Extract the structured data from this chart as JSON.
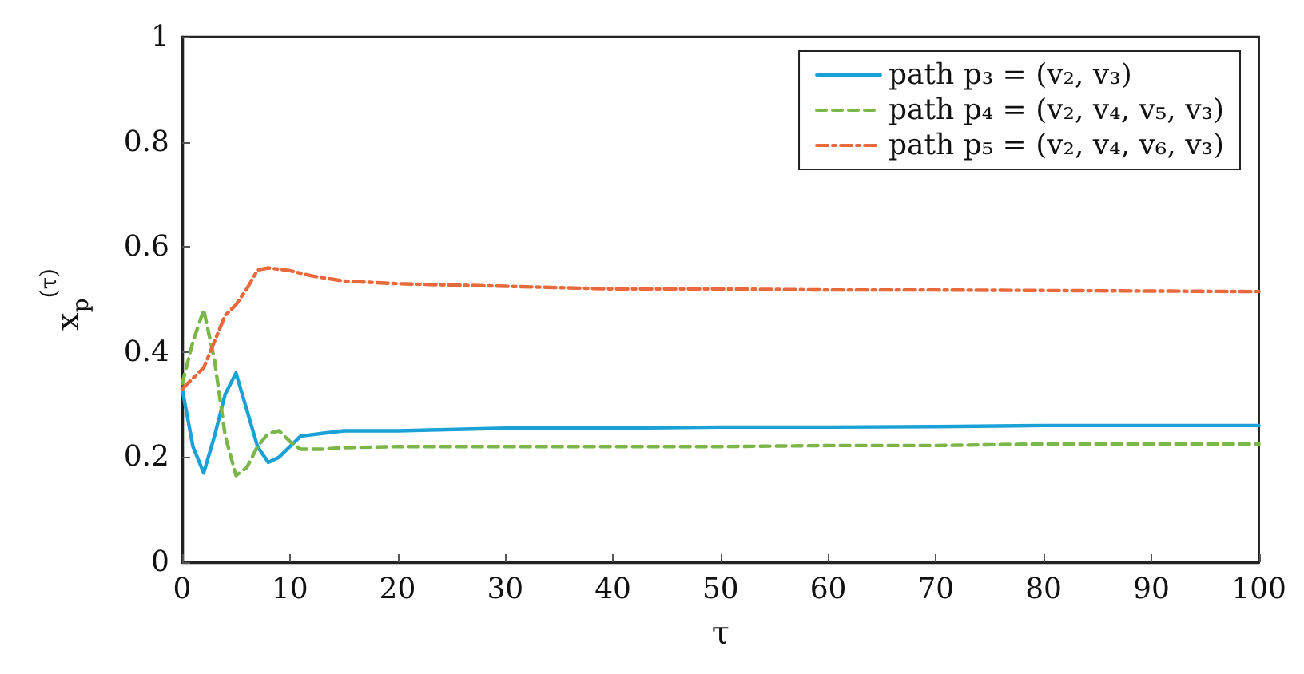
{
  "chart_data": {
    "type": "line",
    "xlabel": "τ",
    "ylabel": "x$_{p}$$^{(τ)}$",
    "xlim": [
      0,
      100
    ],
    "ylim": [
      0,
      1
    ],
    "xticks": [
      0,
      10,
      20,
      30,
      40,
      50,
      60,
      70,
      80,
      90,
      100
    ],
    "yticks": [
      0,
      0.2,
      0.4,
      0.6,
      0.8,
      1
    ],
    "grid": false,
    "legend": "top right",
    "marker": "none",
    "series": [
      {
        "name": "path p₃ = (v₂, v₃)",
        "color": "#1ba1d6",
        "line_style": "solid",
        "x": [
          0,
          1,
          2,
          3,
          4,
          5,
          6,
          7,
          8,
          9,
          10,
          11,
          13,
          15,
          20,
          30,
          40,
          50,
          60,
          70,
          80,
          90,
          100
        ],
        "values": [
          0.33,
          0.22,
          0.17,
          0.24,
          0.32,
          0.36,
          0.29,
          0.22,
          0.19,
          0.2,
          0.22,
          0.24,
          0.245,
          0.25,
          0.25,
          0.255,
          0.255,
          0.257,
          0.257,
          0.258,
          0.26,
          0.26,
          0.26
        ]
      },
      {
        "name": "path p₄ = (v₂, v₄, v₅, v₃)",
        "color": "#7ab648",
        "line_style": "dashed",
        "x": [
          0,
          1,
          2,
          3,
          4,
          5,
          6,
          7,
          8,
          9,
          10,
          11,
          13,
          15,
          20,
          30,
          40,
          50,
          60,
          70,
          80,
          90,
          100
        ],
        "values": [
          0.34,
          0.42,
          0.48,
          0.385,
          0.24,
          0.165,
          0.18,
          0.22,
          0.245,
          0.25,
          0.23,
          0.215,
          0.215,
          0.218,
          0.22,
          0.22,
          0.22,
          0.22,
          0.222,
          0.222,
          0.225,
          0.225,
          0.225
        ]
      },
      {
        "name": "path p₅ = (v₂, v₄, v₆, v₃)",
        "color": "#e8693c",
        "line_style": "dash-dot",
        "x": [
          0,
          1,
          2,
          3,
          4,
          5,
          6,
          7,
          8,
          10,
          12,
          15,
          20,
          30,
          40,
          50,
          60,
          70,
          80,
          90,
          100
        ],
        "values": [
          0.33,
          0.35,
          0.37,
          0.42,
          0.47,
          0.49,
          0.52,
          0.556,
          0.56,
          0.555,
          0.545,
          0.535,
          0.53,
          0.525,
          0.52,
          0.52,
          0.518,
          0.518,
          0.517,
          0.516,
          0.515
        ]
      }
    ]
  }
}
